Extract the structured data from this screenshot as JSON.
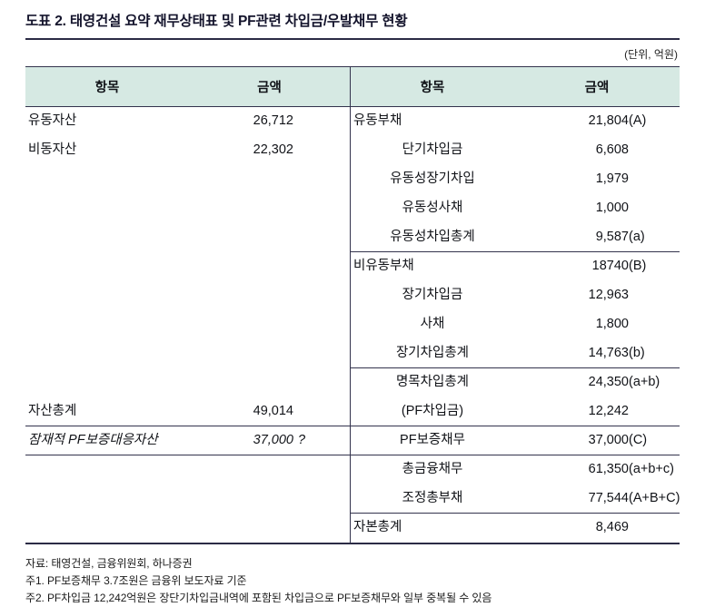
{
  "title": "도표 2. 태영건설 요약 재무상태표 및 PF관련 차입금/우발채무 현황",
  "unit_note": "(단위, 억원)",
  "headers": {
    "item": "항목",
    "amount": "금액"
  },
  "colors": {
    "header_bg": "#d6e9e3",
    "rule": "#33334d"
  },
  "assets": {
    "rows": [
      {
        "item": "유동자산",
        "value": "26,712",
        "suffix": ""
      },
      {
        "item": "비동자산",
        "value": "22,302",
        "suffix": ""
      },
      {
        "item": "자산총계",
        "value": "49,014",
        "suffix": ""
      },
      {
        "item": "잠재적 PF보증대응자산",
        "value": "37,000",
        "suffix": "?"
      }
    ]
  },
  "liabilities": {
    "rows": [
      {
        "item": "유동부채",
        "value": "21,804",
        "suffix": "(A)"
      },
      {
        "item": "단기차입금",
        "value": "6,608",
        "suffix": ""
      },
      {
        "item": "유동성장기차입",
        "value": "1,979",
        "suffix": ""
      },
      {
        "item": "유동성사채",
        "value": "1,000",
        "suffix": ""
      },
      {
        "item": "유동성차입총계",
        "value": "9,587",
        "suffix": "(a)"
      },
      {
        "item": "비유동부채",
        "value": "18740",
        "suffix": "(B)"
      },
      {
        "item": "장기차입금",
        "value": "12,963",
        "suffix": ""
      },
      {
        "item": "사채",
        "value": "1,800",
        "suffix": ""
      },
      {
        "item": "장기차입총계",
        "value": "14,763",
        "suffix": "(b)"
      },
      {
        "item": "명목차입총계",
        "value": "24,350",
        "suffix": "(a+b)"
      },
      {
        "item": "(PF차입금)",
        "value": "12,242",
        "suffix": ""
      },
      {
        "item": "PF보증채무",
        "value": "37,000",
        "suffix": "(C)"
      },
      {
        "item": "총금융채무",
        "value": "61,350",
        "suffix": "(a+b+c)"
      },
      {
        "item": "조정총부채",
        "value": "77,544",
        "suffix": "(A+B+C)"
      },
      {
        "item": "자본총계",
        "value": "8,469",
        "suffix": ""
      }
    ]
  },
  "footnotes": [
    "자료: 태영건설, 금융위원회, 하나증권",
    "주1. PF보증채무 3.7조원은 금융위 보도자료 기준",
    "주2. PF차입금 12,242억원은 장단기차입금내역에 포함된 차입금으로 PF보증채무와 일부 중복될 수 있음"
  ]
}
